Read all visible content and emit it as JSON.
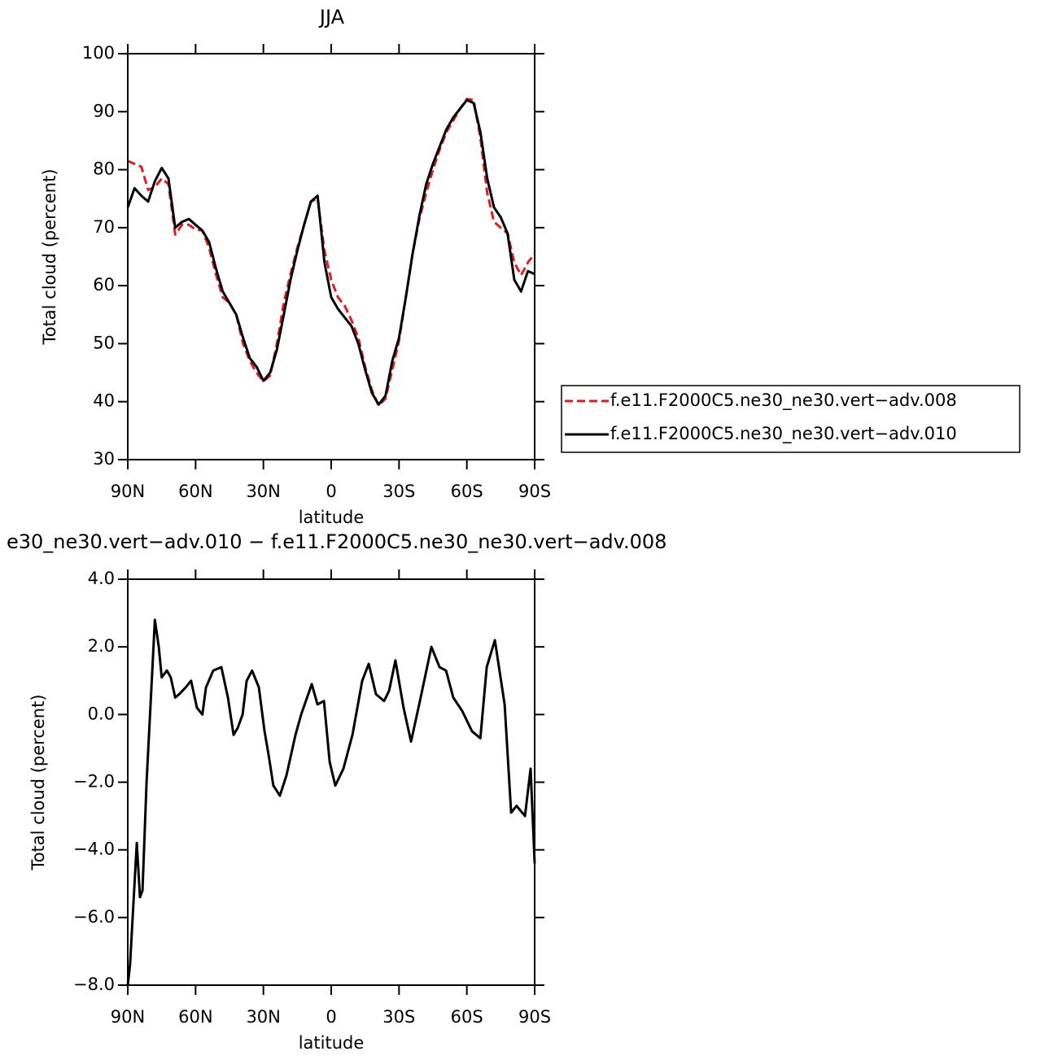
{
  "chart_data": [
    {
      "type": "line",
      "title": "JJA",
      "xlabel": "latitude",
      "ylabel": "Total cloud (percent)",
      "x": [
        90,
        87,
        84,
        81,
        78,
        75,
        72,
        69,
        66,
        63,
        60,
        57,
        54,
        51,
        48,
        45,
        42,
        39,
        36,
        33,
        30,
        27,
        24,
        21,
        18,
        15,
        12,
        9,
        6,
        3,
        0,
        -3,
        -6,
        -9,
        -12,
        -15,
        -18,
        -21,
        -24,
        -27,
        -30,
        -33,
        -36,
        -39,
        -42,
        -45,
        -48,
        -51,
        -54,
        -57,
        -60,
        -63,
        -66,
        -69,
        -72,
        -75,
        -78,
        -81,
        -84,
        -87,
        -90
      ],
      "series": [
        {
          "name": "f.e11.F2000C5.ne30_ne30.vert−adv.008",
          "color": "#e41a1c",
          "dash": true,
          "values": [
            81.5,
            81,
            80.5,
            76.5,
            77,
            78.5,
            77.5,
            68.8,
            70.5,
            70.5,
            69.7,
            69.5,
            66.5,
            62,
            58,
            57,
            55,
            50,
            47,
            45,
            43.5,
            44.5,
            50,
            57,
            62,
            66.5,
            70.5,
            74.5,
            75,
            66,
            61,
            58,
            56.5,
            54,
            51,
            46,
            42,
            39.3,
            40.5,
            45.5,
            50.5,
            58,
            65.5,
            71.5,
            76,
            80,
            83.5,
            86.5,
            88.5,
            90.5,
            92.2,
            92,
            85.5,
            76,
            71,
            70,
            69,
            64,
            61.8,
            64,
            65.5
          ]
        },
        {
          "name": "f.e11.F2000C5.ne30_ne30.vert−adv.010",
          "color": "#000000",
          "dash": false,
          "values": [
            73.5,
            76.8,
            75.5,
            74.5,
            78,
            80.3,
            78.5,
            70,
            71,
            71.5,
            70.5,
            69.5,
            67.5,
            63,
            59,
            57,
            55,
            51,
            47.5,
            46,
            43.6,
            45,
            49,
            55,
            61,
            66,
            70.5,
            74.5,
            75.5,
            64,
            58,
            56,
            54.5,
            53,
            50,
            45.5,
            41.5,
            39.5,
            41,
            47,
            51,
            58,
            65.5,
            72,
            77.5,
            81,
            84,
            87,
            89,
            90.5,
            92,
            91.5,
            86.5,
            78.5,
            73.5,
            71.8,
            69,
            61,
            59,
            62.5,
            62
          ]
        }
      ],
      "xlim": [
        90,
        -90
      ],
      "xticks": [
        {
          "value": 90,
          "label": "90N"
        },
        {
          "value": 60,
          "label": "60N"
        },
        {
          "value": 30,
          "label": "30N"
        },
        0,
        {
          "value": -30,
          "label": "30S"
        },
        {
          "value": -60,
          "label": "60S"
        },
        {
          "value": -90,
          "label": "90S"
        }
      ],
      "ylim": [
        30,
        100
      ],
      "yticks": [
        30,
        40,
        50,
        60,
        70,
        80,
        90,
        100
      ],
      "legend": "right"
    },
    {
      "type": "line",
      "title": "e30_ne30.vert−adv.010 − f.e11.F2000C5.ne30_ne30.vert−adv.008",
      "xlabel": "latitude",
      "ylabel": "Total cloud (percent)",
      "x": [
        90,
        89,
        87,
        86,
        84.6,
        83.5,
        81.7,
        80,
        78,
        76.3,
        75,
        72.7,
        71,
        69,
        67.3,
        64.4,
        62,
        59.4,
        57,
        55.4,
        52.2,
        48.6,
        45.7,
        43.2,
        41.4,
        39.2,
        37.4,
        35,
        32,
        29.5,
        27.7,
        25.6,
        22.7,
        19.8,
        15.8,
        13.3,
        8.6,
        6.1,
        3.2,
        0.7,
        -1.8,
        -5.4,
        -9.4,
        -13.7,
        -16.6,
        -19.8,
        -23.4,
        -25.6,
        -28.4,
        -32,
        -35.3,
        -38.9,
        -44.3,
        -47.9,
        -50.8,
        -54,
        -58,
        -62.3,
        -66,
        -68.8,
        -72.4,
        -76.7,
        -79.6,
        -82,
        -85.7,
        -88.2,
        -90
      ],
      "values": [
        -8,
        -7.4,
        -5,
        -3.8,
        -5.4,
        -5.2,
        -2,
        0.2,
        2.8,
        2,
        1.1,
        1.3,
        1.1,
        0.5,
        0.6,
        0.8,
        1,
        0.2,
        0,
        0.8,
        1.3,
        1.4,
        0.5,
        -0.6,
        -0.4,
        0,
        1,
        1.3,
        0.8,
        -0.5,
        -1.2,
        -2.1,
        -2.4,
        -1.8,
        -0.6,
        0,
        0.9,
        0.3,
        0.4,
        -1.4,
        -2.1,
        -1.6,
        -0.6,
        1,
        1.5,
        0.6,
        0.4,
        0.7,
        1.6,
        0.2,
        -0.8,
        0.3,
        2,
        1.4,
        1.3,
        0.5,
        0.1,
        -0.5,
        -0.7,
        1.4,
        2.2,
        0.3,
        -2.9,
        -2.7,
        -3,
        -1.6,
        -4.4
      ],
      "color": "#000000",
      "xlim": [
        90,
        -90
      ],
      "xticks": [
        {
          "value": 90,
          "label": "90N"
        },
        {
          "value": 60,
          "label": "60N"
        },
        {
          "value": 30,
          "label": "30N"
        },
        0,
        {
          "value": -30,
          "label": "30S"
        },
        {
          "value": -60,
          "label": "60S"
        },
        {
          "value": -90,
          "label": "90S"
        }
      ],
      "ylim": [
        -8,
        4
      ],
      "yticks": [
        {
          "value": -8,
          "label": "−8.0"
        },
        {
          "value": -6,
          "label": "−6.0"
        },
        {
          "value": -4,
          "label": "−4.0"
        },
        {
          "value": -2,
          "label": "−2.0"
        },
        {
          "value": 0,
          "label": "0.0"
        },
        {
          "value": 2,
          "label": "2.0"
        },
        {
          "value": 4,
          "label": "4.0"
        }
      ]
    }
  ]
}
